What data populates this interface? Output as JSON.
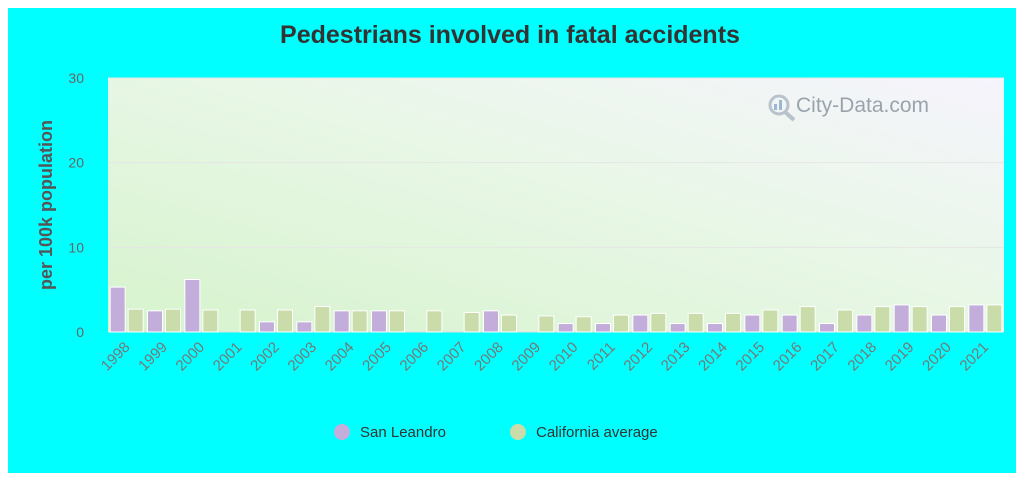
{
  "chart_data": {
    "type": "bar",
    "title": "Pedestrians involved in fatal accidents",
    "xlabel": "",
    "ylabel": "per 100k population",
    "ylim": [
      0,
      30
    ],
    "yticks": [
      0,
      10,
      20,
      30
    ],
    "grid": true,
    "legend_position": "bottom",
    "categories": [
      "1998",
      "1999",
      "2000",
      "2001",
      "2002",
      "2003",
      "2004",
      "2005",
      "2006",
      "2007",
      "2008",
      "2009",
      "2010",
      "2011",
      "2012",
      "2013",
      "2014",
      "2015",
      "2016",
      "2017",
      "2018",
      "2019",
      "2020",
      "2021"
    ],
    "series": [
      {
        "name": "San Leandro",
        "color": "#c3aedb",
        "values": [
          5.3,
          2.5,
          6.2,
          0,
          1.2,
          1.2,
          2.5,
          2.5,
          0,
          0,
          2.5,
          0,
          1.0,
          1.0,
          2.0,
          1.0,
          1.0,
          2.0,
          2.0,
          1.0,
          2.0,
          3.2,
          2.0,
          3.2
        ]
      },
      {
        "name": "California average",
        "color": "#c9dcaa",
        "values": [
          2.7,
          2.7,
          2.6,
          2.6,
          2.6,
          3.0,
          2.5,
          2.5,
          2.5,
          2.3,
          2.0,
          1.9,
          1.8,
          2.0,
          2.2,
          2.2,
          2.2,
          2.6,
          3.0,
          2.6,
          3.0,
          3.0,
          3.0,
          3.2
        ]
      }
    ]
  },
  "watermark": "City-Data.com",
  "watermark_icon": "magnifier-chart-icon",
  "colors": {
    "background": "#00ffff"
  }
}
